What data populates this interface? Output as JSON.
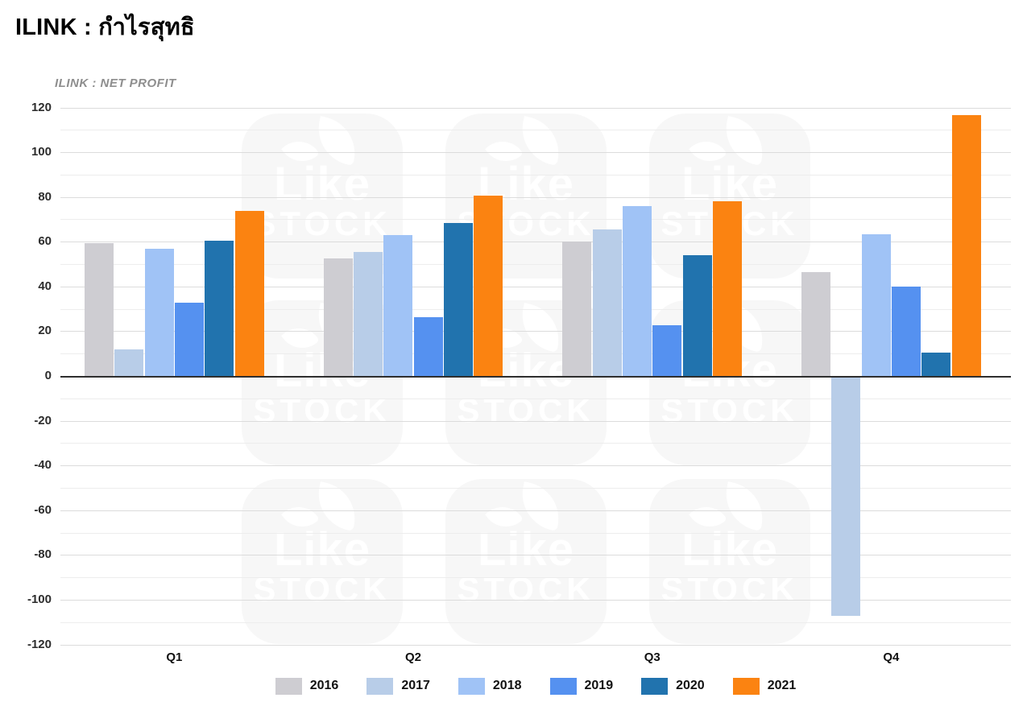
{
  "header": {
    "title": "ILINK : กำไรสุทธิ",
    "subtitle": "ILINK : NET PROFIT"
  },
  "watermark": {
    "line1": "Like",
    "line2": "STOCK"
  },
  "chart_data": {
    "type": "bar",
    "title": "ILINK : NET PROFIT",
    "categories": [
      "Q1",
      "Q2",
      "Q3",
      "Q4"
    ],
    "series": [
      {
        "name": "2016",
        "color": "#cecdd2",
        "values": [
          59.3,
          52.6,
          60.0,
          46.5
        ]
      },
      {
        "name": "2017",
        "color": "#b8cde8",
        "values": [
          11.7,
          55.5,
          65.5,
          -106.5
        ]
      },
      {
        "name": "2018",
        "color": "#a0c3f6",
        "values": [
          56.9,
          63.0,
          76.1,
          63.2
        ]
      },
      {
        "name": "2019",
        "color": "#5591f0",
        "values": [
          32.8,
          26.4,
          22.8,
          39.9
        ]
      },
      {
        "name": "2020",
        "color": "#2173ae",
        "values": [
          60.5,
          68.5,
          53.8,
          10.5
        ]
      },
      {
        "name": "2021",
        "color": "#fb8311",
        "values": [
          73.8,
          80.7,
          78.2,
          116.5
        ]
      }
    ],
    "ylim": [
      -120,
      120
    ],
    "ytick_step": 20,
    "grid_minor_step": 10,
    "grid": true,
    "legend_position": "bottom",
    "xlabel": "",
    "ylabel": ""
  }
}
